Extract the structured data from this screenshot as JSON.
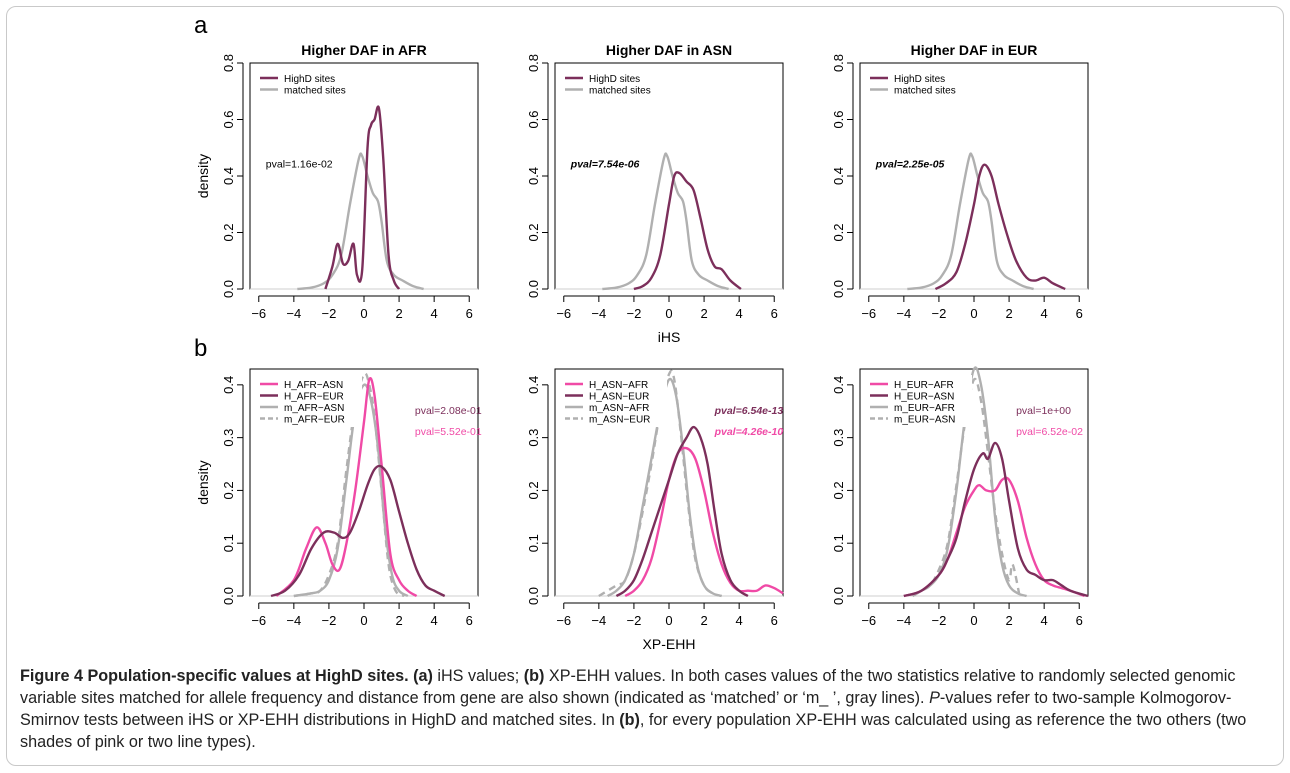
{
  "panel_labels": [
    "a",
    "b"
  ],
  "legend_labels": {
    "a_highd": "HighD sites",
    "a_matched": "matched sites",
    "b": [
      [
        "H_AFR−ASN",
        "H_AFR−EUR",
        "m_AFR−ASN",
        "m_AFR−EUR"
      ],
      [
        "H_ASN−AFR",
        "H_ASN−EUR",
        "m_ASN−AFR",
        "m_ASN−EUR"
      ],
      [
        "H_EUR−AFR",
        "H_EUR−ASN",
        "m_EUR−AFR",
        "m_EUR−ASN"
      ]
    ]
  },
  "colors": {
    "dark": "#7c2f5b",
    "pink": "#f04aa6",
    "gray": "#b0b0b0"
  },
  "caption": {
    "lead": "Figure 4 Population-specific values at HighD sites.",
    "a_tag": "(a)",
    "a_text": " iHS values; ",
    "b_tag": "(b)",
    "b_text": " XP-EHH values. In both cases values of the two statistics relative to randomly selected genomic variable sites matched for allele frequency and distance from gene are also shown (indicated as ‘matched’ or ‘m_ ’, gray lines). ",
    "p_italic": "P",
    "p_text": "-values refer to two-sample Kolmogorov-Smirnov tests between iHS or XP-EHH distributions in HighD and matched sites. In ",
    "b_tag2": "(b)",
    "end_text": ", for every population XP-EHH was calculated using as reference the two others (two shades of pink or two line types)."
  },
  "chart_data": [
    {
      "type": "line",
      "panel": "a",
      "title": "Higher DAF in  AFR",
      "xlabel": "",
      "ylabel": "density",
      "xlim": [
        -6.5,
        6.5
      ],
      "ylim": [
        0,
        0.8
      ],
      "xticks": [
        -6,
        -4,
        -2,
        0,
        2,
        4,
        6
      ],
      "yticks": [
        0.0,
        0.2,
        0.4,
        0.6,
        0.8
      ],
      "legend": "top-left",
      "pvals": [
        {
          "text": "pval=1.16e-02",
          "color": "#000000",
          "style": "normal",
          "x": -5.6,
          "y": 0.43
        }
      ],
      "series": [
        {
          "name": "HighD sites",
          "color": "dark",
          "dash": false,
          "x": [
            -2.2,
            -1.8,
            -1.5,
            -1.2,
            -0.9,
            -0.6,
            -0.4,
            -0.1,
            0.2,
            0.4,
            0.6,
            0.85,
            1.1,
            1.4,
            1.7,
            2.0
          ],
          "y": [
            0.0,
            0.08,
            0.16,
            0.09,
            0.1,
            0.16,
            0.05,
            0.07,
            0.5,
            0.58,
            0.6,
            0.64,
            0.46,
            0.12,
            0.03,
            0.0
          ]
        },
        {
          "name": "matched sites",
          "color": "gray",
          "dash": false,
          "x": [
            -3.8,
            -3.0,
            -2.3,
            -1.8,
            -1.3,
            -0.8,
            -0.3,
            -0.1,
            0.2,
            0.5,
            0.8,
            1.0,
            1.3,
            1.7,
            2.2,
            2.8,
            3.4
          ],
          "y": [
            0.0,
            0.005,
            0.02,
            0.05,
            0.12,
            0.3,
            0.46,
            0.47,
            0.4,
            0.34,
            0.31,
            0.24,
            0.1,
            0.05,
            0.03,
            0.01,
            0.0
          ]
        }
      ]
    },
    {
      "type": "line",
      "panel": "a",
      "title": "Higher DAF in  ASN",
      "xlabel": "iHS",
      "ylabel": "",
      "xlim": [
        -6.5,
        6.5
      ],
      "ylim": [
        0,
        0.8
      ],
      "xticks": [
        -6,
        -4,
        -2,
        0,
        2,
        4,
        6
      ],
      "yticks": [
        0.0,
        0.2,
        0.4,
        0.6,
        0.8
      ],
      "legend": "top-left",
      "pvals": [
        {
          "text": "pval=7.54e-06",
          "color": "#000000",
          "style": "bolditalic",
          "x": -5.6,
          "y": 0.43
        }
      ],
      "series": [
        {
          "name": "HighD sites",
          "color": "dark",
          "dash": false,
          "x": [
            -2.0,
            -1.5,
            -1.0,
            -0.5,
            0.0,
            0.3,
            0.6,
            1.0,
            1.4,
            1.8,
            2.2,
            2.6,
            3.0,
            3.5,
            4.1
          ],
          "y": [
            0.0,
            0.01,
            0.04,
            0.12,
            0.3,
            0.4,
            0.41,
            0.38,
            0.35,
            0.25,
            0.14,
            0.08,
            0.07,
            0.03,
            0.0
          ]
        },
        {
          "name": "matched sites",
          "color": "gray",
          "dash": false,
          "x": [
            -3.8,
            -3.0,
            -2.3,
            -1.8,
            -1.3,
            -0.8,
            -0.3,
            -0.1,
            0.2,
            0.5,
            0.8,
            1.0,
            1.3,
            1.7,
            2.2,
            2.8,
            3.4
          ],
          "y": [
            0.0,
            0.005,
            0.02,
            0.05,
            0.12,
            0.3,
            0.46,
            0.47,
            0.4,
            0.34,
            0.31,
            0.24,
            0.1,
            0.05,
            0.03,
            0.01,
            0.0
          ]
        }
      ]
    },
    {
      "type": "line",
      "panel": "a",
      "title": "Higher DAF in  EUR",
      "xlabel": "",
      "ylabel": "",
      "xlim": [
        -6.5,
        6.5
      ],
      "ylim": [
        0,
        0.8
      ],
      "xticks": [
        -6,
        -4,
        -2,
        0,
        2,
        4,
        6
      ],
      "yticks": [
        0.0,
        0.2,
        0.4,
        0.6,
        0.8
      ],
      "legend": "top-left",
      "pvals": [
        {
          "text": "pval=2.25e-05",
          "color": "#000000",
          "style": "bolditalic",
          "x": -5.6,
          "y": 0.43
        }
      ],
      "series": [
        {
          "name": "HighD sites",
          "color": "dark",
          "dash": false,
          "x": [
            -2.2,
            -1.6,
            -1.0,
            -0.5,
            0.0,
            0.3,
            0.6,
            1.0,
            1.4,
            1.9,
            2.4,
            3.0,
            3.5,
            4.0,
            4.5,
            5.2
          ],
          "y": [
            0.0,
            0.02,
            0.06,
            0.16,
            0.3,
            0.4,
            0.44,
            0.4,
            0.3,
            0.19,
            0.1,
            0.04,
            0.03,
            0.04,
            0.02,
            0.0
          ]
        },
        {
          "name": "matched sites",
          "color": "gray",
          "dash": false,
          "x": [
            -3.8,
            -3.0,
            -2.3,
            -1.8,
            -1.3,
            -0.8,
            -0.3,
            -0.1,
            0.2,
            0.5,
            0.8,
            1.0,
            1.3,
            1.7,
            2.2,
            2.8,
            3.4
          ],
          "y": [
            0.0,
            0.005,
            0.02,
            0.05,
            0.12,
            0.3,
            0.46,
            0.47,
            0.4,
            0.34,
            0.31,
            0.24,
            0.1,
            0.05,
            0.03,
            0.01,
            0.0
          ]
        }
      ]
    },
    {
      "type": "line",
      "panel": "b",
      "title": "",
      "xlabel": "",
      "ylabel": "density",
      "xlim": [
        -6.5,
        6.5
      ],
      "ylim": [
        0,
        0.43
      ],
      "xticks": [
        -6,
        -4,
        -2,
        0,
        2,
        4,
        6
      ],
      "yticks": [
        0.0,
        0.1,
        0.2,
        0.3,
        0.4
      ],
      "legend": "top-left",
      "pvals": [
        {
          "text": "pval=2.08e-01",
          "color": "#7c2f5b",
          "style": "normal",
          "x": 2.9,
          "y": 0.345
        },
        {
          "text": "pval=5.52e-01",
          "color": "#f04aa6",
          "style": "normal",
          "x": 2.9,
          "y": 0.305
        }
      ],
      "series": [
        {
          "name": "H_AFR−ASN",
          "color": "pink",
          "dash": false,
          "x": [
            -5.0,
            -4.0,
            -3.3,
            -2.7,
            -2.2,
            -1.8,
            -1.4,
            -1.0,
            -0.5,
            0.0,
            0.3,
            0.6,
            1.0,
            1.5,
            2.0,
            2.5,
            3.0
          ],
          "y": [
            0.0,
            0.03,
            0.09,
            0.13,
            0.1,
            0.06,
            0.05,
            0.1,
            0.2,
            0.33,
            0.41,
            0.38,
            0.25,
            0.08,
            0.03,
            0.01,
            0.0
          ]
        },
        {
          "name": "H_AFR−EUR",
          "color": "dark",
          "dash": false,
          "x": [
            -5.3,
            -4.5,
            -3.7,
            -3.0,
            -2.3,
            -1.7,
            -1.2,
            -0.8,
            -0.3,
            0.2,
            0.6,
            1.0,
            1.5,
            2.0,
            2.5,
            3.0,
            3.5,
            4.0,
            4.6
          ],
          "y": [
            0.0,
            0.01,
            0.04,
            0.09,
            0.12,
            0.12,
            0.11,
            0.12,
            0.16,
            0.21,
            0.24,
            0.245,
            0.22,
            0.16,
            0.1,
            0.05,
            0.02,
            0.01,
            0.0
          ]
        },
        {
          "name": "m_AFR−ASN",
          "color": "gray",
          "dash": false,
          "x": [
            -4.0,
            -3.0,
            -2.5,
            -2.0,
            -1.5,
            -1.0,
            -0.5,
            0.0,
            0.4,
            0.8,
            1.2,
            1.6,
            2.0,
            2.5
          ],
          "y": [
            0.0,
            0.005,
            0.01,
            0.03,
            0.09,
            0.22,
            0.35,
            0.4,
            0.37,
            0.28,
            0.13,
            0.04,
            0.01,
            0.0
          ]
        },
        {
          "name": "m_AFR−EUR",
          "color": "gray",
          "dash": true,
          "x": [
            -4.0,
            -3.0,
            -2.5,
            -2.0,
            -1.5,
            -1.0,
            -0.5,
            0.0,
            0.3,
            0.6,
            1.0,
            1.4,
            1.8,
            2.3
          ],
          "y": [
            0.0,
            0.005,
            0.01,
            0.04,
            0.1,
            0.24,
            0.36,
            0.42,
            0.4,
            0.34,
            0.2,
            0.06,
            0.01,
            0.0
          ]
        }
      ]
    },
    {
      "type": "line",
      "panel": "b",
      "title": "",
      "xlabel": "XP-EHH",
      "ylabel": "",
      "xlim": [
        -6.5,
        6.5
      ],
      "ylim": [
        0,
        0.43
      ],
      "xticks": [
        -6,
        -4,
        -2,
        0,
        2,
        4,
        6
      ],
      "yticks": [
        0.0,
        0.1,
        0.2,
        0.3,
        0.4
      ],
      "legend": "top-left",
      "pvals": [
        {
          "text": "pval=6.54e-13",
          "color": "#7c2f5b",
          "style": "bolditalic",
          "x": 2.6,
          "y": 0.345
        },
        {
          "text": "pval=4.26e-10",
          "color": "#f04aa6",
          "style": "bolditalic",
          "x": 2.6,
          "y": 0.305
        }
      ],
      "series": [
        {
          "name": "H_ASN−AFR",
          "color": "pink",
          "dash": false,
          "x": [
            -2.5,
            -2.0,
            -1.5,
            -1.0,
            -0.5,
            0.0,
            0.5,
            1.0,
            1.5,
            2.0,
            2.5,
            3.0,
            3.5,
            4.0,
            4.5,
            5.0,
            5.5,
            6.0,
            6.5
          ],
          "y": [
            0.0,
            0.01,
            0.03,
            0.07,
            0.14,
            0.22,
            0.27,
            0.28,
            0.26,
            0.2,
            0.12,
            0.06,
            0.025,
            0.01,
            0.01,
            0.01,
            0.02,
            0.015,
            0.005
          ]
        },
        {
          "name": "H_ASN−EUR",
          "color": "dark",
          "dash": false,
          "x": [
            -3.0,
            -2.5,
            -2.0,
            -1.5,
            -1.0,
            -0.5,
            0.0,
            0.5,
            1.0,
            1.4,
            1.8,
            2.2,
            2.6,
            3.0,
            3.5,
            4.0,
            4.5
          ],
          "y": [
            0.0,
            0.01,
            0.03,
            0.07,
            0.12,
            0.17,
            0.22,
            0.27,
            0.3,
            0.32,
            0.3,
            0.25,
            0.16,
            0.08,
            0.03,
            0.01,
            0.0
          ]
        },
        {
          "name": "m_ASN−AFR",
          "color": "gray",
          "dash": false,
          "x": [
            -3.5,
            -3.0,
            -2.5,
            -2.0,
            -1.5,
            -1.0,
            -0.5,
            0.0,
            0.4,
            0.8,
            1.2,
            1.6,
            2.0,
            2.5,
            3.0
          ],
          "y": [
            0.0,
            0.01,
            0.03,
            0.08,
            0.17,
            0.26,
            0.35,
            0.41,
            0.38,
            0.28,
            0.15,
            0.06,
            0.02,
            0.005,
            0.0
          ]
        },
        {
          "name": "m_ASN−EUR",
          "color": "gray",
          "dash": true,
          "x": [
            -4.0,
            -3.0,
            -2.5,
            -2.0,
            -1.5,
            -1.0,
            -0.5,
            0.0,
            0.3,
            0.7,
            1.1,
            1.5,
            2.0,
            2.5,
            3.0
          ],
          "y": [
            0.0,
            0.02,
            0.03,
            0.08,
            0.16,
            0.25,
            0.35,
            0.42,
            0.41,
            0.3,
            0.17,
            0.07,
            0.02,
            0.005,
            0.0
          ]
        }
      ]
    },
    {
      "type": "line",
      "panel": "b",
      "title": "",
      "xlabel": "",
      "ylabel": "",
      "xlim": [
        -6.5,
        6.5
      ],
      "ylim": [
        0,
        0.43
      ],
      "xticks": [
        -6,
        -4,
        -2,
        0,
        2,
        4,
        6
      ],
      "yticks": [
        0.0,
        0.1,
        0.2,
        0.3,
        0.4
      ],
      "legend": "top-left",
      "pvals": [
        {
          "text": "pval=1e+00",
          "color": "#7c2f5b",
          "style": "normal",
          "x": 2.4,
          "y": 0.345
        },
        {
          "text": "pval=6.52e-02",
          "color": "#f04aa6",
          "style": "normal",
          "x": 2.4,
          "y": 0.305
        }
      ],
      "series": [
        {
          "name": "H_EUR−AFR",
          "color": "pink",
          "dash": false,
          "x": [
            -4.0,
            -3.0,
            -2.0,
            -1.5,
            -1.0,
            -0.5,
            0.0,
            0.3,
            0.7,
            1.2,
            1.6,
            2.0,
            2.5,
            3.0,
            3.5,
            4.0,
            4.5,
            5.0,
            5.5,
            6.3
          ],
          "y": [
            0.0,
            0.01,
            0.04,
            0.07,
            0.12,
            0.17,
            0.2,
            0.21,
            0.2,
            0.2,
            0.22,
            0.22,
            0.18,
            0.11,
            0.06,
            0.03,
            0.02,
            0.015,
            0.01,
            0.0
          ]
        },
        {
          "name": "H_EUR−ASN",
          "color": "dark",
          "dash": false,
          "x": [
            -4.0,
            -3.0,
            -2.0,
            -1.5,
            -1.0,
            -0.5,
            0.0,
            0.5,
            0.8,
            1.2,
            1.6,
            2.0,
            2.5,
            3.0,
            3.5,
            4.0,
            4.5,
            5.0,
            5.5,
            6.5
          ],
          "y": [
            0.0,
            0.01,
            0.04,
            0.07,
            0.11,
            0.18,
            0.24,
            0.27,
            0.26,
            0.29,
            0.26,
            0.18,
            0.09,
            0.05,
            0.04,
            0.03,
            0.03,
            0.02,
            0.01,
            0.0
          ]
        },
        {
          "name": "m_EUR−AFR",
          "color": "gray",
          "dash": false,
          "x": [
            -3.5,
            -3.0,
            -2.5,
            -2.0,
            -1.5,
            -1.0,
            -0.5,
            0.0,
            0.4,
            0.8,
            1.2,
            1.6,
            2.0,
            2.5,
            3.0
          ],
          "y": [
            0.0,
            0.01,
            0.02,
            0.04,
            0.09,
            0.2,
            0.34,
            0.43,
            0.4,
            0.3,
            0.15,
            0.06,
            0.02,
            0.005,
            0.0
          ]
        },
        {
          "name": "m_EUR−ASN",
          "color": "gray",
          "dash": true,
          "x": [
            -3.5,
            -3.0,
            -2.5,
            -2.0,
            -1.5,
            -1.0,
            -0.5,
            0.0,
            0.4,
            0.8,
            1.2,
            1.6,
            2.0,
            2.2,
            2.6
          ],
          "y": [
            0.0,
            0.01,
            0.02,
            0.05,
            0.1,
            0.21,
            0.33,
            0.41,
            0.37,
            0.27,
            0.16,
            0.08,
            0.03,
            0.06,
            0.0
          ]
        }
      ]
    }
  ]
}
